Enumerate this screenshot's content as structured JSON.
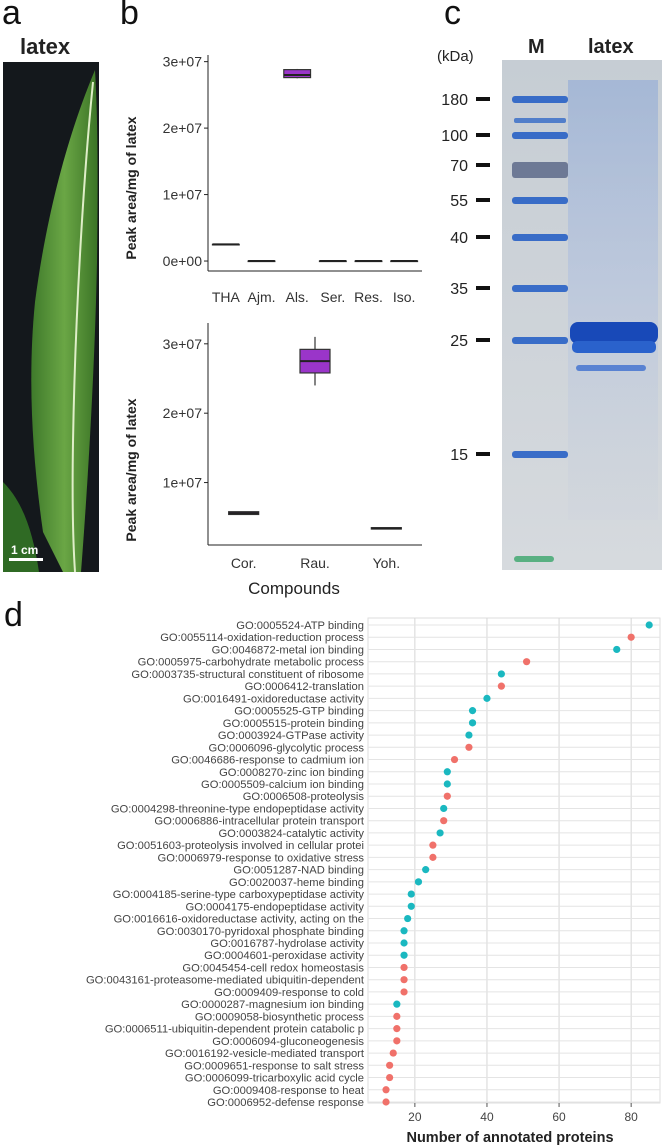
{
  "panel_a": {
    "letter": "a",
    "title": "latex",
    "scale_bar_label": "1 cm",
    "colors": {
      "background": "#14181c",
      "leaf": "#4d8a35",
      "leaf_light": "#8cc45a",
      "midrib": "#dfeec8"
    }
  },
  "panel_b": {
    "letter": "b",
    "ylabel_top": "Peak area/mg of latex",
    "ylabel_bottom": "Peak area/mg of latex",
    "xlabel": "Compounds"
  },
  "panel_c": {
    "letter": "c",
    "unit_label": "(kDa)",
    "lane_labels": [
      "M",
      "latex"
    ],
    "markers": [
      "180",
      "100",
      "70",
      "55",
      "40",
      "35",
      "25",
      "15"
    ],
    "colors": {
      "gel": "#c8cfd6",
      "band": "#1e5bc4"
    }
  },
  "panel_d": {
    "letter": "d",
    "xlabel": "Number of annotated proteins"
  },
  "chart_data": [
    {
      "type": "box",
      "panel": "b-top",
      "ylabel": "Peak area/mg of latex",
      "categories": [
        "THA",
        "Ajm.",
        "Als.",
        "Ser.",
        "Res.",
        "Iso."
      ],
      "boxes": [
        {
          "q1": 2500000,
          "median": 2500000,
          "q3": 2500000,
          "min": 2500000,
          "max": 2500000
        },
        {
          "q1": 0,
          "median": 0,
          "q3": 0,
          "min": 0,
          "max": 0
        },
        {
          "q1": 27600000,
          "median": 28000000,
          "q3": 28800000,
          "min": 27500000,
          "max": 28900000
        },
        {
          "q1": 0,
          "median": 0,
          "q3": 0,
          "min": 0,
          "max": 0
        },
        {
          "q1": 0,
          "median": 0,
          "q3": 0,
          "min": 0,
          "max": 0
        },
        {
          "q1": 0,
          "median": 0,
          "q3": 0,
          "min": 0,
          "max": 0
        }
      ],
      "ylim": [
        -1500000,
        31000000
      ],
      "yticks": [
        0,
        10000000,
        20000000,
        30000000
      ],
      "ytick_labels": [
        "0e+00",
        "1e+07",
        "2e+07",
        "3e+07"
      ],
      "colors": {
        "highlight": "#9a35c9"
      }
    },
    {
      "type": "box",
      "panel": "b-bottom",
      "ylabel": "Peak area/mg of latex",
      "xlabel": "Compounds",
      "categories": [
        "Cor.",
        "Rau.",
        "Yoh."
      ],
      "boxes": [
        {
          "q1": 5400000,
          "median": 5600000,
          "q3": 5800000,
          "min": 5400000,
          "max": 5800000
        },
        {
          "q1": 25800000,
          "median": 27500000,
          "q3": 29200000,
          "min": 24000000,
          "max": 31000000
        },
        {
          "q1": 3300000,
          "median": 3400000,
          "q3": 3500000,
          "min": 3300000,
          "max": 3500000
        }
      ],
      "ylim": [
        1000000,
        33000000
      ],
      "yticks": [
        10000000,
        20000000,
        30000000
      ],
      "ytick_labels": [
        "1e+07",
        "2e+07",
        "3e+07"
      ],
      "colors": {
        "highlight": "#9a35c9"
      }
    },
    {
      "type": "scatter",
      "panel": "d",
      "xlabel": "Number of annotated proteins",
      "xlim": [
        7,
        88
      ],
      "xticks": [
        20,
        40,
        60,
        80
      ],
      "grid": true,
      "colors": {
        "teal": "#1ab8c0",
        "salmon": "#f0716a"
      },
      "points": [
        {
          "label": "GO:0005524-ATP binding",
          "x": 85,
          "color": "teal"
        },
        {
          "label": "GO:0055114-oxidation-reduction process",
          "x": 80,
          "color": "salmon"
        },
        {
          "label": "GO:0046872-metal ion binding",
          "x": 76,
          "color": "teal"
        },
        {
          "label": "GO:0005975-carbohydrate metabolic process",
          "x": 51,
          "color": "salmon"
        },
        {
          "label": "GO:0003735-structural constituent of ribosome",
          "x": 44,
          "color": "teal"
        },
        {
          "label": "GO:0006412-translation",
          "x": 44,
          "color": "salmon"
        },
        {
          "label": "GO:0016491-oxidoreductase activity",
          "x": 40,
          "color": "teal"
        },
        {
          "label": "GO:0005525-GTP binding",
          "x": 36,
          "color": "teal"
        },
        {
          "label": "GO:0005515-protein binding",
          "x": 36,
          "color": "teal"
        },
        {
          "label": "GO:0003924-GTPase activity",
          "x": 35,
          "color": "teal"
        },
        {
          "label": "GO:0006096-glycolytic process",
          "x": 35,
          "color": "salmon"
        },
        {
          "label": "GO:0046686-response to cadmium ion",
          "x": 31,
          "color": "salmon"
        },
        {
          "label": "GO:0008270-zinc ion binding",
          "x": 29,
          "color": "teal"
        },
        {
          "label": "GO:0005509-calcium ion binding",
          "x": 29,
          "color": "teal"
        },
        {
          "label": "GO:0006508-proteolysis",
          "x": 29,
          "color": "salmon"
        },
        {
          "label": "GO:0004298-threonine-type endopeptidase activity",
          "x": 28,
          "color": "teal"
        },
        {
          "label": "GO:0006886-intracellular protein transport",
          "x": 28,
          "color": "salmon"
        },
        {
          "label": "GO:0003824-catalytic activity",
          "x": 27,
          "color": "teal"
        },
        {
          "label": "GO:0051603-proteolysis involved in cellular protei",
          "x": 25,
          "color": "salmon"
        },
        {
          "label": "GO:0006979-response to oxidative stress",
          "x": 25,
          "color": "salmon"
        },
        {
          "label": "GO:0051287-NAD binding",
          "x": 23,
          "color": "teal"
        },
        {
          "label": "GO:0020037-heme binding",
          "x": 21,
          "color": "teal"
        },
        {
          "label": "GO:0004185-serine-type carboxypeptidase activity",
          "x": 19,
          "color": "teal"
        },
        {
          "label": "GO:0004175-endopeptidase activity",
          "x": 19,
          "color": "teal"
        },
        {
          "label": "GO:0016616-oxidoreductase activity, acting on the",
          "x": 18,
          "color": "teal"
        },
        {
          "label": "GO:0030170-pyridoxal phosphate binding",
          "x": 17,
          "color": "teal"
        },
        {
          "label": "GO:0016787-hydrolase activity",
          "x": 17,
          "color": "teal"
        },
        {
          "label": "GO:0004601-peroxidase activity",
          "x": 17,
          "color": "teal"
        },
        {
          "label": "GO:0045454-cell redox homeostasis",
          "x": 17,
          "color": "salmon"
        },
        {
          "label": "GO:0043161-proteasome-mediated ubiquitin-dependent",
          "x": 17,
          "color": "salmon"
        },
        {
          "label": "GO:0009409-response to cold",
          "x": 17,
          "color": "salmon"
        },
        {
          "label": "GO:0000287-magnesium ion binding",
          "x": 15,
          "color": "teal"
        },
        {
          "label": "GO:0009058-biosynthetic process",
          "x": 15,
          "color": "salmon"
        },
        {
          "label": "GO:0006511-ubiquitin-dependent protein catabolic p",
          "x": 15,
          "color": "salmon"
        },
        {
          "label": "GO:0006094-gluconeogenesis",
          "x": 15,
          "color": "salmon"
        },
        {
          "label": "GO:0016192-vesicle-mediated transport",
          "x": 14,
          "color": "salmon"
        },
        {
          "label": "GO:0009651-response to salt stress",
          "x": 13,
          "color": "salmon"
        },
        {
          "label": "GO:0006099-tricarboxylic acid cycle",
          "x": 13,
          "color": "salmon"
        },
        {
          "label": "GO:0009408-response to heat",
          "x": 12,
          "color": "salmon"
        },
        {
          "label": "GO:0006952-defense response",
          "x": 12,
          "color": "salmon"
        }
      ]
    }
  ]
}
